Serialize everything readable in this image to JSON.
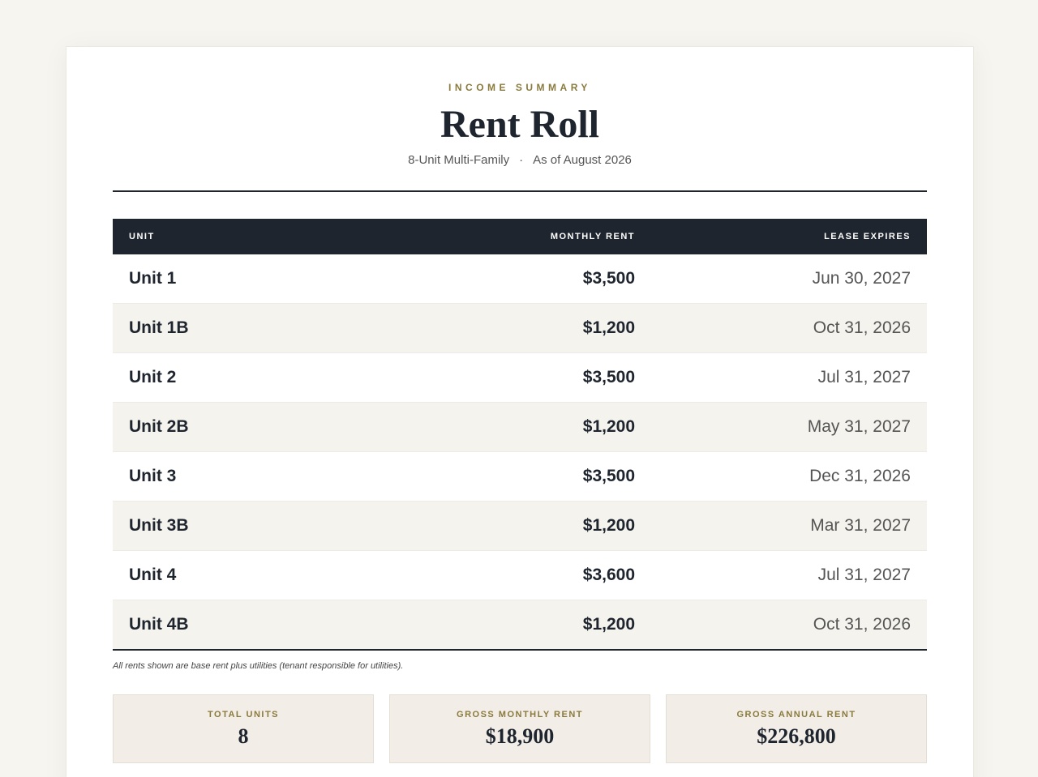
{
  "header": {
    "eyebrow": "INCOME SUMMARY",
    "title": "Rent Roll",
    "subtitle": {
      "property": "8-Unit Multi-Family",
      "separator": "·",
      "as_of": "As of August 2026"
    }
  },
  "table": {
    "columns": [
      "UNIT",
      "MONTHLY RENT",
      "LEASE EXPIRES"
    ],
    "rows": [
      [
        "Unit 1",
        "$3,500",
        "Jun 30, 2027"
      ],
      [
        "Unit 1B",
        "$1,200",
        "Oct 31, 2026"
      ],
      [
        "Unit 2",
        "$3,500",
        "Jul 31, 2027"
      ],
      [
        "Unit 2B",
        "$1,200",
        "May 31, 2027"
      ],
      [
        "Unit 3",
        "$3,500",
        "Dec 31, 2026"
      ],
      [
        "Unit 3B",
        "$1,200",
        "Mar 31, 2027"
      ],
      [
        "Unit 4",
        "$3,600",
        "Jul 31, 2027"
      ],
      [
        "Unit 4B",
        "$1,200",
        "Oct 31, 2026"
      ]
    ]
  },
  "footnote": "All rents shown are base rent plus utilities (tenant responsible for utilities).",
  "summary": [
    {
      "label": "TOTAL UNITS",
      "value": "8"
    },
    {
      "label": "GROSS MONTHLY RENT",
      "value": "$18,900"
    },
    {
      "label": "GROSS ANNUAL RENT",
      "value": "$226,800"
    }
  ]
}
